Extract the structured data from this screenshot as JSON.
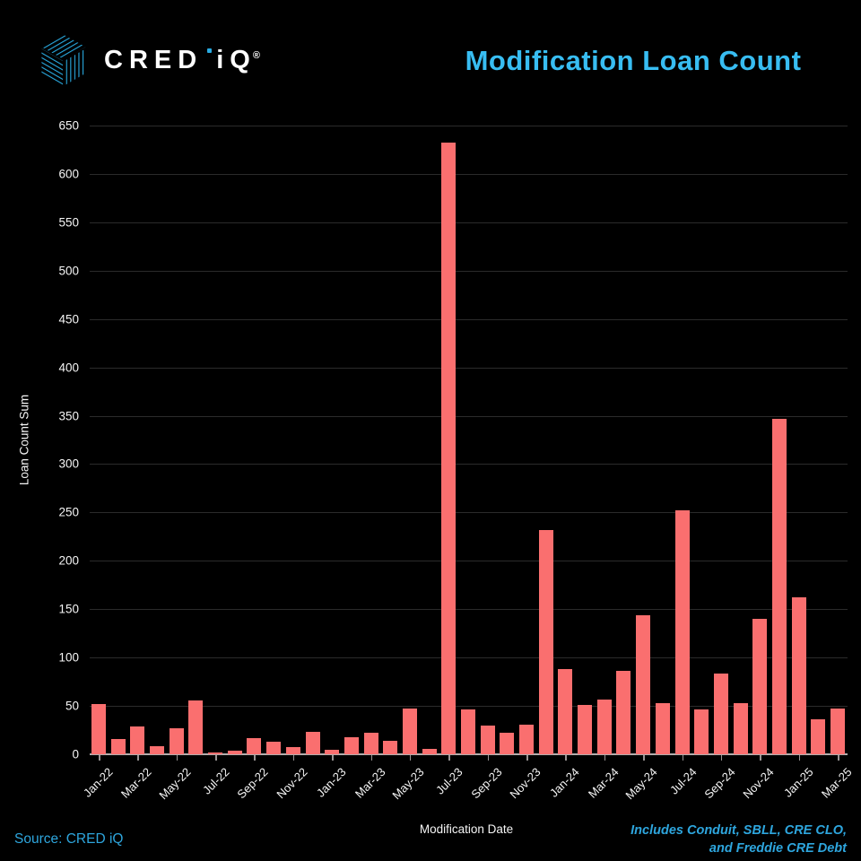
{
  "brand": {
    "word": "CRED iQ",
    "registered": "®",
    "logo_blue": "#29ABE2"
  },
  "header": {
    "title": "Modification Loan Count",
    "title_color": "#38BDF2"
  },
  "chart_data": {
    "type": "bar",
    "title": "Modification Loan Count",
    "xlabel": "Modification Date",
    "ylabel": "Loan Count Sum",
    "ylim": [
      0,
      650
    ],
    "ytick_step": 50,
    "grid": true,
    "legend": "none",
    "bar_color": "#FA6F6F",
    "categories": [
      "Jan-22",
      "Feb-22",
      "Mar-22",
      "Apr-22",
      "May-22",
      "Jun-22",
      "Jul-22",
      "Aug-22",
      "Sep-22",
      "Oct-22",
      "Nov-22",
      "Dec-22",
      "Jan-23",
      "Feb-23",
      "Mar-23",
      "Apr-23",
      "May-23",
      "Jun-23",
      "Jul-23",
      "Aug-23",
      "Sep-23",
      "Oct-23",
      "Nov-23",
      "Dec-23",
      "Jan-24",
      "Feb-24",
      "Mar-24",
      "Apr-24",
      "May-24",
      "Jun-24",
      "Jul-24",
      "Aug-24",
      "Sep-24",
      "Oct-24",
      "Nov-24",
      "Dec-24",
      "Jan-25",
      "Feb-25",
      "Mar-25"
    ],
    "values": [
      52,
      16,
      29,
      8,
      27,
      56,
      2,
      4,
      17,
      13,
      7,
      23,
      5,
      18,
      22,
      14,
      47,
      6,
      632,
      46,
      30,
      22,
      31,
      232,
      88,
      51,
      57,
      86,
      144,
      53,
      252,
      46,
      83,
      53,
      140,
      347,
      162,
      36,
      47
    ],
    "xtick_every": 2
  },
  "footer": {
    "source": "Source: CRED iQ",
    "note_line1": "Includes Conduit, SBLL, CRE CLO,",
    "note_line2": "and Freddie CRE Debt",
    "accent_color": "#2EA6DE"
  }
}
